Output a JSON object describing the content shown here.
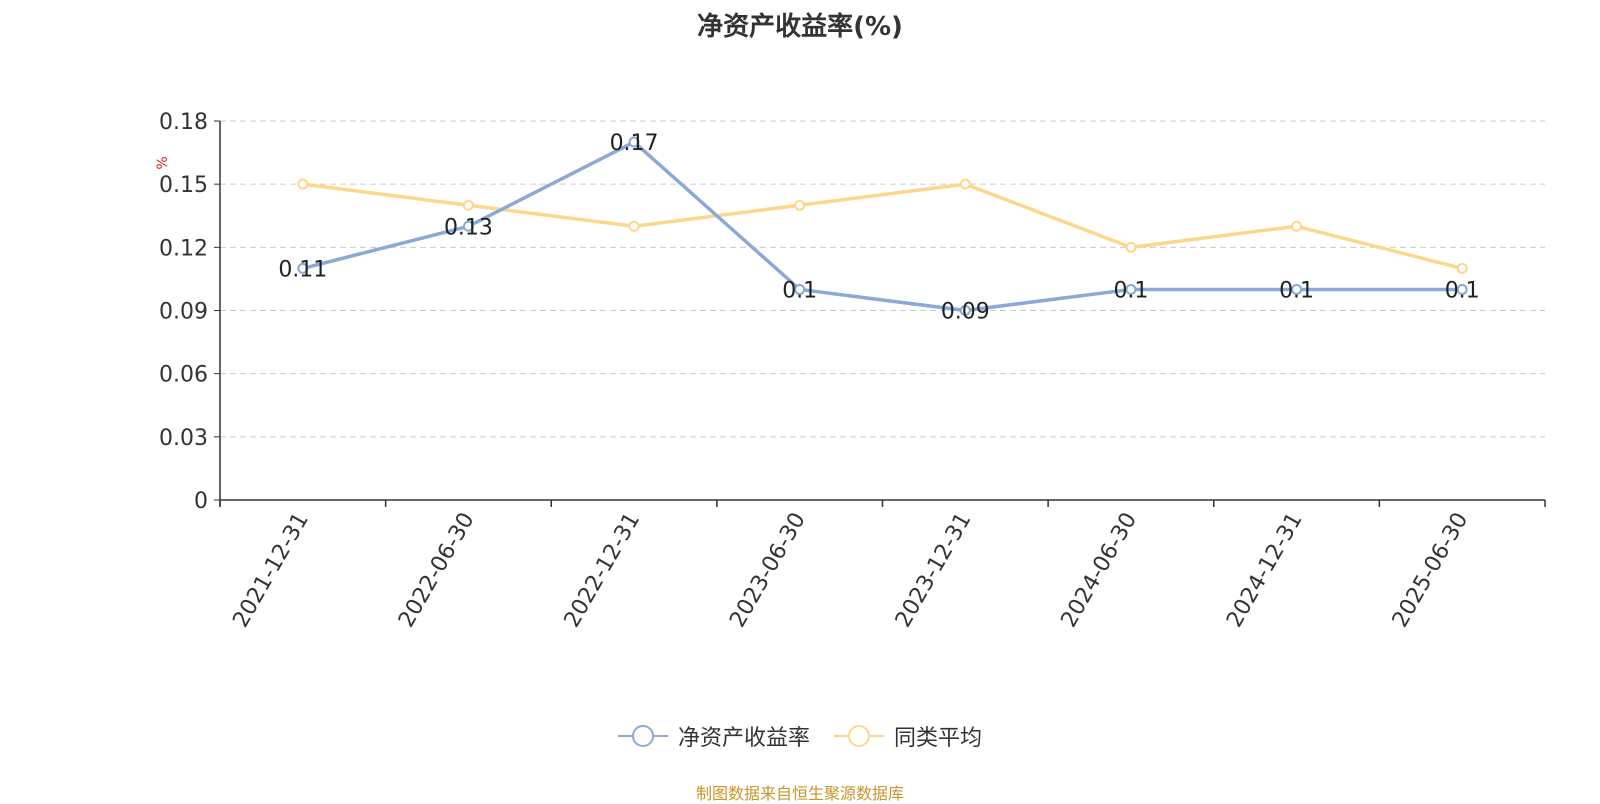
{
  "title": "净资产收益率(%)",
  "chart_data": {
    "type": "line",
    "title": "净资产收益率(%)",
    "ylabel": "%",
    "ylim": [
      0,
      0.18
    ],
    "yticks": [
      "0",
      "0.03",
      "0.06",
      "0.09",
      "0.12",
      "0.15",
      "0.18"
    ],
    "ytick_values": [
      0,
      0.03,
      0.06,
      0.09,
      0.12,
      0.15,
      0.18
    ],
    "categories": [
      "2021-12-31",
      "2022-06-30",
      "2022-12-31",
      "2023-06-30",
      "2023-12-31",
      "2024-06-30",
      "2024-12-31",
      "2025-06-30"
    ],
    "grid": true,
    "legend_position": "bottom",
    "series": [
      {
        "name": "净资产收益率",
        "color": "#8aa9d6",
        "values": [
          0.11,
          0.13,
          0.17,
          0.1,
          0.09,
          0.1,
          0.1,
          0.1
        ],
        "labels": [
          "0.11",
          "0.13",
          "0.17",
          "0.1",
          "0.09",
          "0.1",
          "0.1",
          "0.1"
        ]
      },
      {
        "name": "同类平均",
        "color": "#fcd68c",
        "values": [
          0.15,
          0.14,
          0.13,
          0.14,
          0.15,
          0.12,
          0.13,
          0.11
        ]
      }
    ]
  },
  "source": "制图数据来自恒生聚源数据库"
}
